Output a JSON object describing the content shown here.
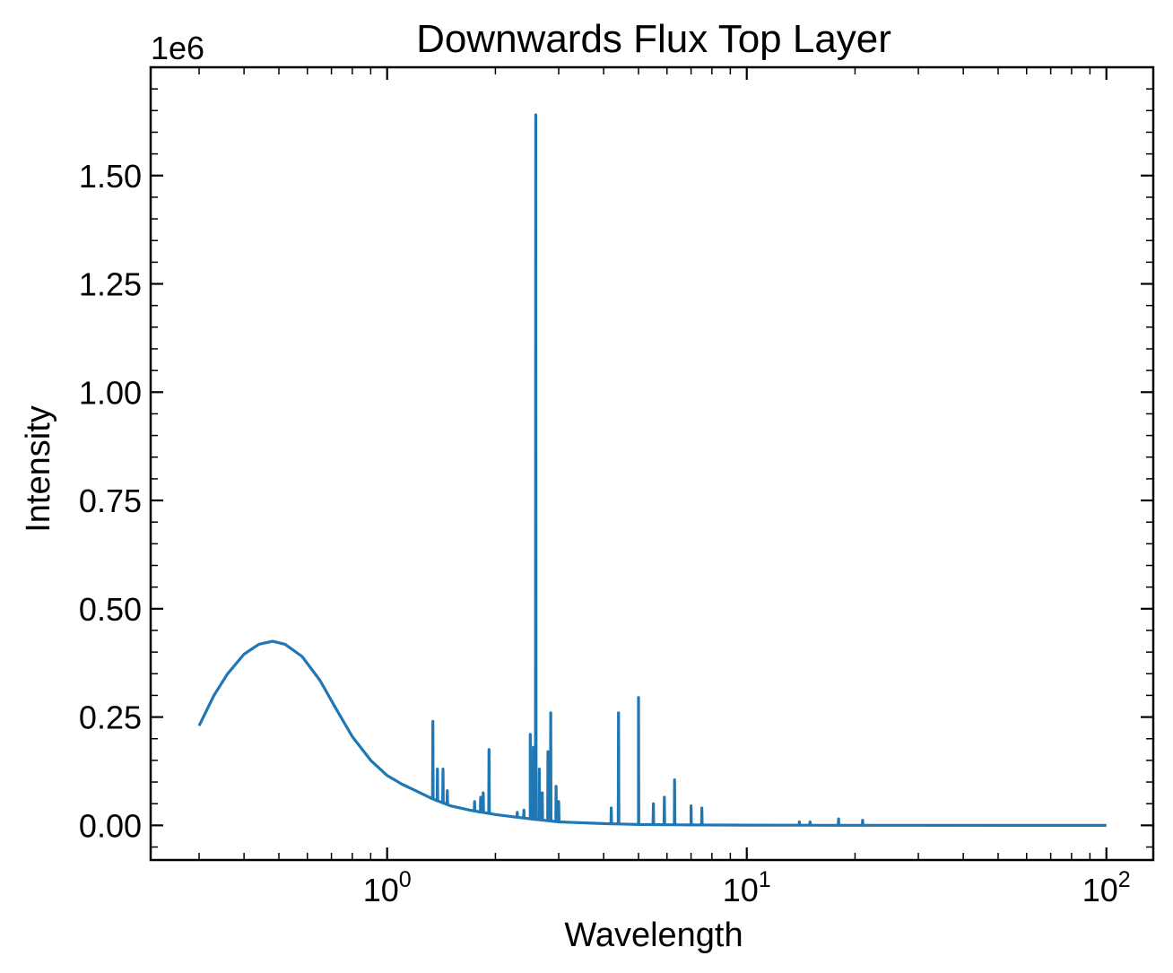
{
  "chart_data": {
    "type": "line",
    "title": "Downwards Flux Top Layer",
    "xlabel": "Wavelength",
    "ylabel": "Intensity",
    "y_offset_label": "1e6",
    "xscale": "log",
    "xlim": [
      0.22,
      135
    ],
    "ylim": [
      -0.08,
      1.75
    ],
    "grid": false,
    "x_ticks": [
      {
        "value": 1,
        "base": "10",
        "exp": "0"
      },
      {
        "value": 10,
        "base": "10",
        "exp": "1"
      },
      {
        "value": 100,
        "base": "10",
        "exp": "2"
      }
    ],
    "y_ticks": [
      {
        "value": 0.0,
        "label": "0.00"
      },
      {
        "value": 0.25,
        "label": "0.25"
      },
      {
        "value": 0.5,
        "label": "0.50"
      },
      {
        "value": 0.75,
        "label": "0.75"
      },
      {
        "value": 1.0,
        "label": "1.00"
      },
      {
        "value": 1.25,
        "label": "1.25"
      },
      {
        "value": 1.5,
        "label": "1.50"
      }
    ],
    "series": [
      {
        "color": "#1f77b4",
        "continuum": [
          [
            0.3,
            0.23
          ],
          [
            0.33,
            0.3
          ],
          [
            0.36,
            0.35
          ],
          [
            0.4,
            0.395
          ],
          [
            0.44,
            0.418
          ],
          [
            0.48,
            0.425
          ],
          [
            0.52,
            0.418
          ],
          [
            0.58,
            0.39
          ],
          [
            0.65,
            0.335
          ],
          [
            0.72,
            0.27
          ],
          [
            0.8,
            0.205
          ],
          [
            0.9,
            0.15
          ],
          [
            1.0,
            0.115
          ],
          [
            1.1,
            0.095
          ],
          [
            1.2,
            0.08
          ],
          [
            1.35,
            0.06
          ],
          [
            1.5,
            0.045
          ],
          [
            1.7,
            0.035
          ],
          [
            2.0,
            0.025
          ],
          [
            2.5,
            0.015
          ],
          [
            3.0,
            0.008
          ],
          [
            4.0,
            0.004
          ],
          [
            5.0,
            0.002
          ],
          [
            7.0,
            0.001
          ],
          [
            10,
            0.0005
          ],
          [
            20,
            0.0001
          ],
          [
            100,
            0.0
          ]
        ],
        "spikes": [
          [
            1.34,
            0.24
          ],
          [
            1.38,
            0.13
          ],
          [
            1.43,
            0.13
          ],
          [
            1.47,
            0.08
          ],
          [
            1.75,
            0.055
          ],
          [
            1.82,
            0.065
          ],
          [
            1.85,
            0.075
          ],
          [
            1.92,
            0.175
          ],
          [
            2.3,
            0.03
          ],
          [
            2.4,
            0.035
          ],
          [
            2.5,
            0.21
          ],
          [
            2.55,
            0.18
          ],
          [
            2.59,
            1.64
          ],
          [
            2.65,
            0.13
          ],
          [
            2.7,
            0.075
          ],
          [
            2.8,
            0.17
          ],
          [
            2.85,
            0.26
          ],
          [
            2.95,
            0.09
          ],
          [
            3.0,
            0.055
          ],
          [
            4.2,
            0.04
          ],
          [
            4.4,
            0.26
          ],
          [
            5.0,
            0.295
          ],
          [
            5.5,
            0.05
          ],
          [
            5.9,
            0.065
          ],
          [
            6.3,
            0.105
          ],
          [
            7.0,
            0.045
          ],
          [
            7.5,
            0.04
          ],
          [
            14,
            0.008
          ],
          [
            15,
            0.008
          ],
          [
            18,
            0.015
          ],
          [
            21,
            0.012
          ]
        ]
      }
    ]
  }
}
